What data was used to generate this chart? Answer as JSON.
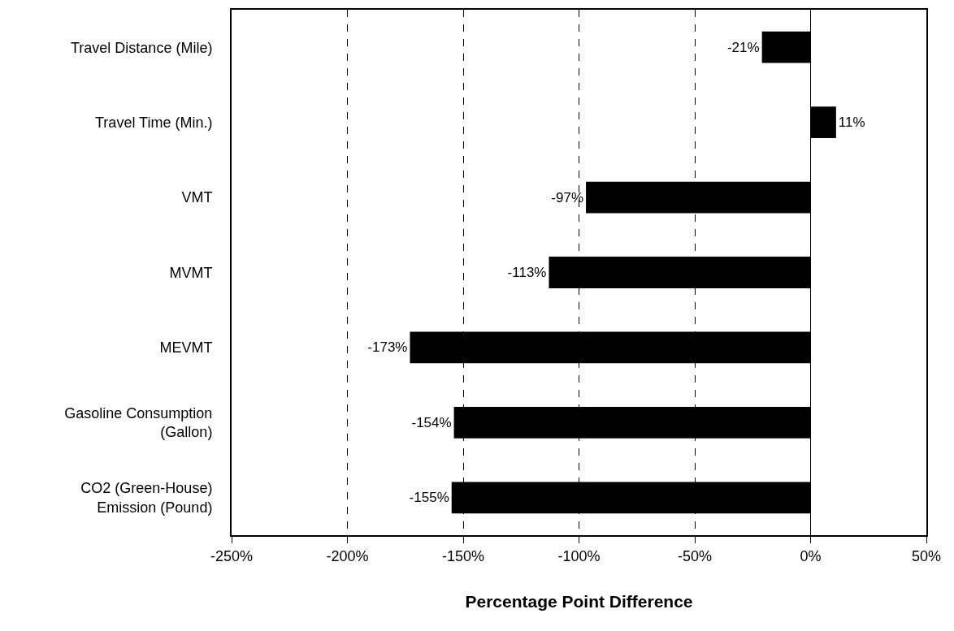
{
  "chart_data": {
    "type": "bar",
    "orientation": "horizontal",
    "xlabel": "Percentage Point Difference",
    "categories": [
      "Travel Distance (Mile)",
      "Travel Time (Min.)",
      "VMT",
      "MVMT",
      "MEVMT",
      "Gasoline Consumption\n(Gallon)",
      "CO2 (Green-House)\nEmission (Pound)"
    ],
    "values": [
      -21,
      11,
      -97,
      -113,
      -173,
      -154,
      -155
    ],
    "value_labels": [
      "-21%",
      "11%",
      "-97%",
      "-113%",
      "-173%",
      "-154%",
      "-155%"
    ],
    "color": "#000000",
    "xlim": [
      -250,
      50
    ],
    "xticks": [
      {
        "value": -250,
        "label": "-250%"
      },
      {
        "value": -200,
        "label": "-200%"
      },
      {
        "value": -150,
        "label": "-150%"
      },
      {
        "value": -100,
        "label": "-100%"
      },
      {
        "value": -50,
        "label": "-50%"
      },
      {
        "value": 0,
        "label": "0%"
      },
      {
        "value": 50,
        "label": "50%"
      }
    ],
    "grid": "x"
  }
}
